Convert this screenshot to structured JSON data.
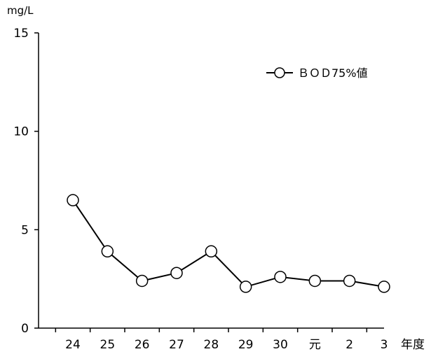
{
  "chart_data": {
    "type": "line",
    "ylabel": "mg/L",
    "xlabel": "年度",
    "categories": [
      "24",
      "25",
      "26",
      "27",
      "28",
      "29",
      "30",
      "元",
      "2",
      "3"
    ],
    "series": [
      {
        "name": "ＢＯＤ75%値",
        "values": [
          6.5,
          3.9,
          2.4,
          2.8,
          3.9,
          2.1,
          2.6,
          2.4,
          2.4,
          2.1
        ]
      }
    ],
    "ylim": [
      0,
      15
    ],
    "yticks": [
      0,
      5,
      10,
      15
    ],
    "grid": false,
    "legend_position": "top-right",
    "colors": {
      "line": "#000000",
      "marker_fill": "#ffffff",
      "marker_stroke": "#000000"
    }
  }
}
